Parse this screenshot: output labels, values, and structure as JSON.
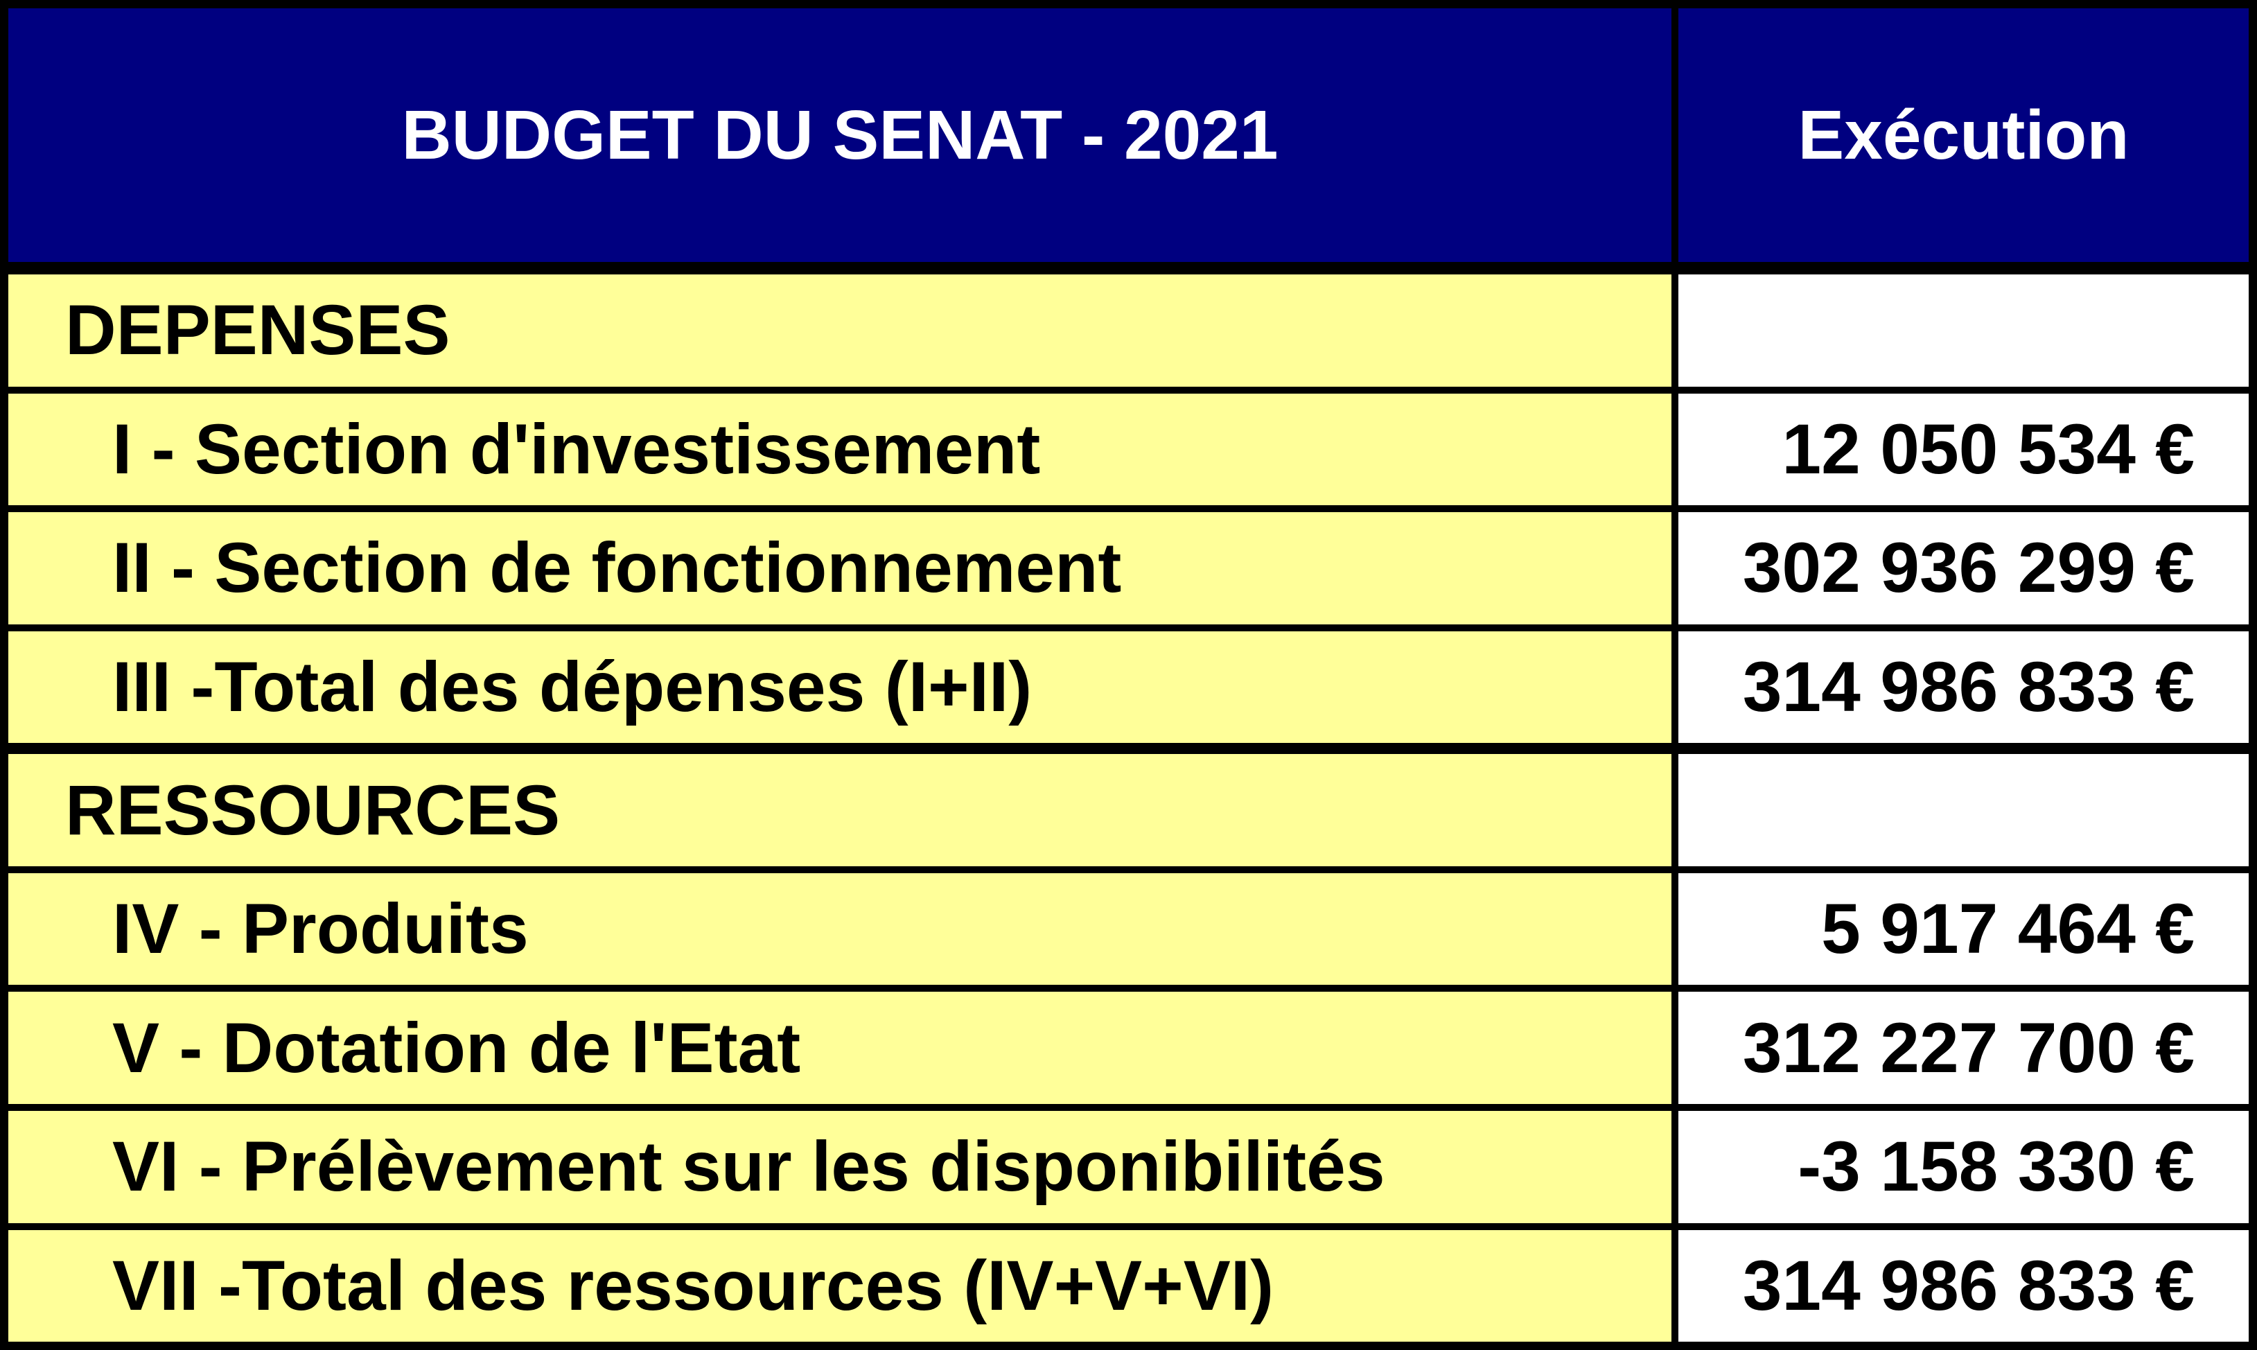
{
  "table": {
    "title": "BUDGET DU SENAT - 2021",
    "value_column_header": "Exécution",
    "currency_symbol": "€",
    "colors": {
      "header_background": "#000080",
      "header_text": "#FFFFFF",
      "label_background": "#FFFF99",
      "value_background": "#FFFFFF",
      "border": "#000000",
      "body_text": "#000000"
    },
    "rows": [
      {
        "label": "DEPENSES",
        "value": "",
        "type": "section"
      },
      {
        "label": "I - Section d'investissement",
        "value": "12 050 534 €",
        "type": "item"
      },
      {
        "label": "II - Section de fonctionnement",
        "value": "302 936 299 €",
        "type": "item"
      },
      {
        "label": "III -Total des dépenses (I+II)",
        "value": "314 986 833 €",
        "type": "item"
      },
      {
        "label": "RESSOURCES",
        "value": "",
        "type": "section"
      },
      {
        "label": "IV - Produits",
        "value": "5 917 464 €",
        "type": "item"
      },
      {
        "label": "V - Dotation de l'Etat",
        "value": "312 227 700 €",
        "type": "item"
      },
      {
        "label": "VI - Prélèvement sur les disponibilités",
        "value": "-3 158 330 €",
        "type": "item"
      },
      {
        "label": "VII -Total des ressources (IV+V+VI)",
        "value": "314 986 833 €",
        "type": "item"
      }
    ]
  }
}
